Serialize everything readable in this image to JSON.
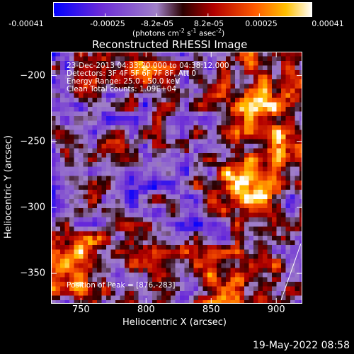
{
  "colorbar": {
    "ticks": [
      "-0.00041",
      "-0.00025",
      "-8.2e-05",
      "8.2e-05",
      "0.00025",
      "0.00041"
    ],
    "units_prefix": "(photons cm",
    "units_exp1": "-2",
    "units_mid": " s",
    "units_exp2": "-1",
    "units_mid2": " asec",
    "units_exp3": "-2",
    "units_suffix": ")"
  },
  "annotations": {
    "time_range": "23-Dec-2013 04:33:20.000 to 04:38:12.000",
    "detectors": "Detectors: 3F 4F 5F 6F 7F 8F, Att 0",
    "energy": "Energy Range: 25.0 - 50.0 keV",
    "clean": "Clean     Total counts: 1.09E+04",
    "peak": "Position of Peak = [876,-283]"
  },
  "footer": "19-May-2022 08:58",
  "chart_data": {
    "type": "heatmap",
    "title": "Reconstructed RHESSI Image",
    "xlabel": "Heliocentric X (arcsec)",
    "ylabel": "Heliocentric Y (arcsec)",
    "xlim": [
      727,
      920
    ],
    "ylim": [
      -373,
      -182
    ],
    "xticks": [
      750,
      800,
      850,
      900
    ],
    "yticks": [
      -200,
      -250,
      -300,
      -350
    ],
    "clim": [
      -0.00041,
      0.00041
    ],
    "peak": [
      876,
      -283
    ]
  }
}
